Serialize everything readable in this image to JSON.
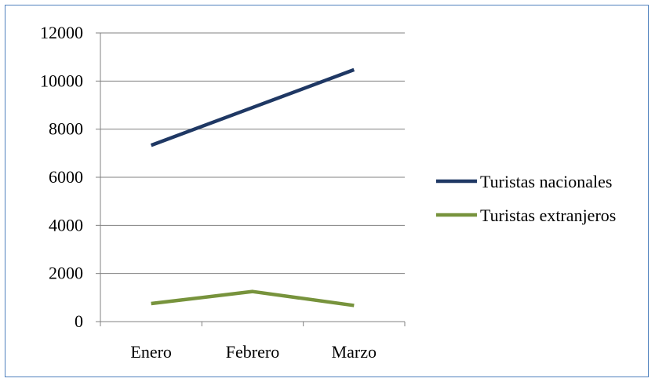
{
  "chart_data": {
    "type": "line",
    "title": "",
    "xlabel": "",
    "ylabel": "",
    "categories": [
      "Enero",
      "Febrero",
      "Marzo"
    ],
    "ylim": [
      0,
      12000
    ],
    "yticks": [
      0,
      2000,
      4000,
      6000,
      8000,
      10000,
      12000
    ],
    "grid": true,
    "legend_position": "right",
    "series": [
      {
        "name": "Turistas nacionales",
        "values": [
          7330,
          8900,
          10470
        ],
        "color": "#1f3864"
      },
      {
        "name": "Turistas extranjeros",
        "values": [
          750,
          1250,
          670
        ],
        "color": "#77933c"
      }
    ]
  },
  "frame_color": "#4f81bd",
  "grid_color": "#808080"
}
